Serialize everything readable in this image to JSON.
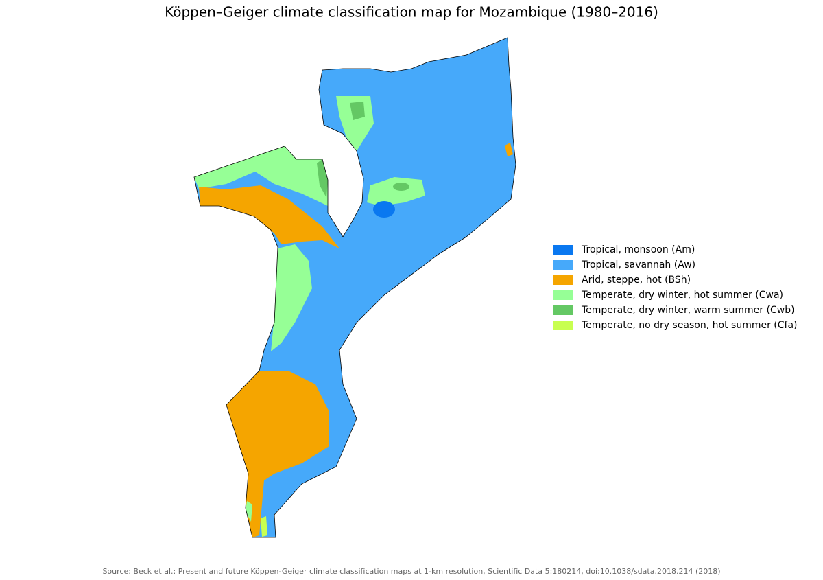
{
  "title": "Köppen–Geiger climate classification map for Mozambique (1980–2016)",
  "legend": {
    "items": [
      {
        "label": "Tropical, monsoon (Am)",
        "color": "#0a78f0"
      },
      {
        "label": "Tropical, savannah (Aw)",
        "color": "#46a9fa"
      },
      {
        "label": "Arid, steppe, hot (BSh)",
        "color": "#f5a500"
      },
      {
        "label": "Temperate, dry winter, hot summer (Cwa)",
        "color": "#96ff96"
      },
      {
        "label": "Temperate, dry winter, warm summer (Cwb)",
        "color": "#64c864"
      },
      {
        "label": "Temperate, no dry season, hot summer (Cfa)",
        "color": "#c8ff50"
      }
    ]
  },
  "source": "Source: Beck et al.: Present and future Köppen-Geiger climate classification maps at 1-km resolution, Scientific Data 5:180214, doi:10.1038/sdata.2018.214 (2018)"
}
